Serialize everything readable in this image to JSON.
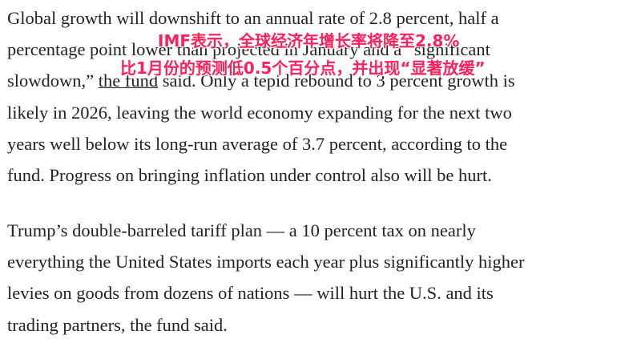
{
  "paragraphs": [
    {
      "lines": [
        "Global growth will downshift to an annual rate of 2.8 percent, half a",
        "percentage point lower than projected in January and a “significant",
        [
          "slowdown,” ",
          "the fund",
          " said. Only a tepid rebound to 3 percent growth is"
        ],
        "likely in 2026, leaving the world economy expanding for the next two",
        "years well below its long-run average of 3.7 percent, according to the",
        "fund. Progress on bringing inflation under control also will be hurt."
      ]
    },
    {
      "lines": [
        "Trump’s double-barreled tariff plan — a 10 percent tax on nearly",
        "everything the United States imports each year plus significantly higher",
        "levies on goods from dozens of nations — will hurt the U.S. and its",
        "trading partners, the fund said."
      ]
    }
  ],
  "annotation": {
    "lines": [
      "IMF表示，全球经济年增长率将降至2.8%",
      "比1月份的预测低0.5个百分点，并出现“显著放缓”"
    ]
  }
}
